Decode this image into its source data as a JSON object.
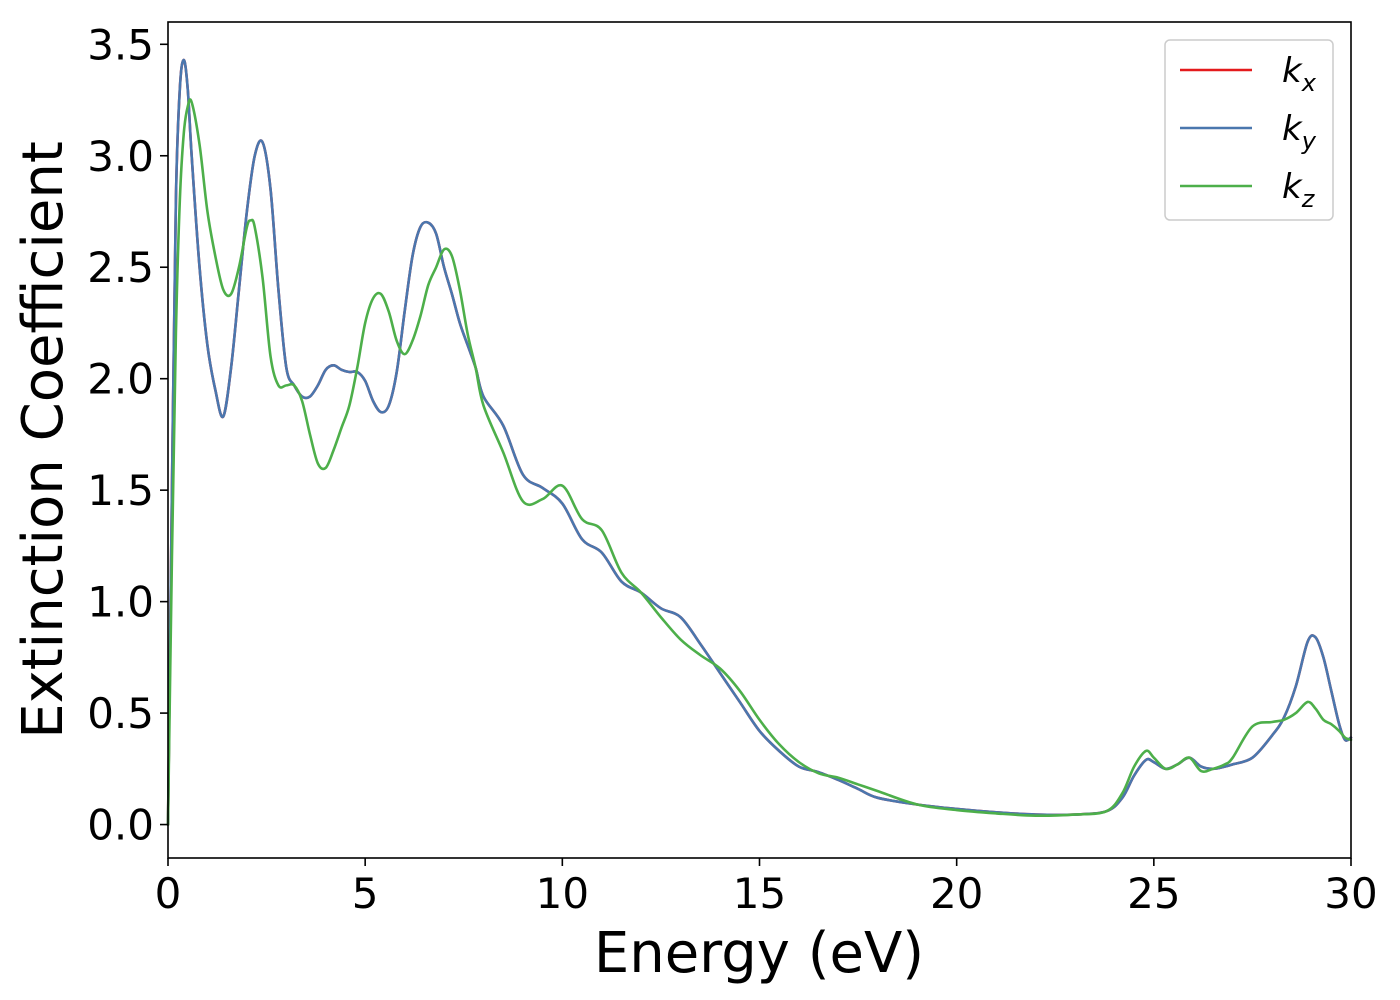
{
  "chart_data": {
    "type": "line",
    "xlabel": "Energy (eV)",
    "ylabel": "Extinction Coefficient",
    "xlim": [
      0,
      30
    ],
    "ylim": [
      -0.15,
      3.6
    ],
    "xticks": [
      0,
      5,
      10,
      15,
      20,
      25,
      30
    ],
    "xtick_labels": [
      "0",
      "5",
      "10",
      "15",
      "20",
      "25",
      "30"
    ],
    "yticks": [
      0.0,
      0.5,
      1.0,
      1.5,
      2.0,
      2.5,
      3.0,
      3.5
    ],
    "ytick_labels": [
      "0.0",
      "0.5",
      "1.0",
      "1.5",
      "2.0",
      "2.5",
      "3.0",
      "3.5"
    ],
    "grid": false,
    "legend_position": "top-right",
    "series": [
      {
        "name": "k",
        "subscript": "x",
        "color": "#e41a1c",
        "x": [
          0,
          0.1,
          0.2,
          0.3,
          0.4,
          0.5,
          0.6,
          0.8,
          1.0,
          1.2,
          1.4,
          1.6,
          1.8,
          2.0,
          2.2,
          2.4,
          2.6,
          2.8,
          3.0,
          3.2,
          3.4,
          3.6,
          3.8,
          4.0,
          4.2,
          4.4,
          4.6,
          4.8,
          5.0,
          5.2,
          5.4,
          5.6,
          5.8,
          6.0,
          6.2,
          6.4,
          6.6,
          6.8,
          7.0,
          7.2,
          7.4,
          7.6,
          7.8,
          8.0,
          8.5,
          9.0,
          9.5,
          10.0,
          10.5,
          11.0,
          11.5,
          12.0,
          12.5,
          13.0,
          13.5,
          14.0,
          14.5,
          15.0,
          15.5,
          16.0,
          16.5,
          17.0,
          17.5,
          18.0,
          19.0,
          20.0,
          21.0,
          22.0,
          23.0,
          23.8,
          24.2,
          24.5,
          24.8,
          25.0,
          25.3,
          25.6,
          25.9,
          26.2,
          26.5,
          26.8,
          27.0,
          27.5,
          28.0,
          28.3,
          28.6,
          28.9,
          29.1,
          29.3,
          29.5,
          29.7,
          29.85,
          30.0
        ],
        "y": [
          0.0,
          1.5,
          2.8,
          3.3,
          3.43,
          3.3,
          3.0,
          2.5,
          2.15,
          1.95,
          1.83,
          2.05,
          2.4,
          2.75,
          3.0,
          3.06,
          2.85,
          2.4,
          2.05,
          1.97,
          1.92,
          1.92,
          1.97,
          2.04,
          2.06,
          2.04,
          2.03,
          2.03,
          1.99,
          1.9,
          1.85,
          1.88,
          2.03,
          2.3,
          2.55,
          2.68,
          2.7,
          2.65,
          2.5,
          2.38,
          2.25,
          2.15,
          2.05,
          1.92,
          1.79,
          1.57,
          1.51,
          1.44,
          1.28,
          1.22,
          1.09,
          1.04,
          0.97,
          0.93,
          0.81,
          0.68,
          0.55,
          0.42,
          0.33,
          0.26,
          0.235,
          0.2,
          0.16,
          0.12,
          0.09,
          0.07,
          0.055,
          0.045,
          0.045,
          0.06,
          0.12,
          0.22,
          0.29,
          0.28,
          0.25,
          0.27,
          0.3,
          0.26,
          0.25,
          0.26,
          0.27,
          0.3,
          0.4,
          0.48,
          0.62,
          0.82,
          0.84,
          0.75,
          0.6,
          0.45,
          0.38,
          0.39
        ]
      },
      {
        "name": "k",
        "subscript": "y",
        "color": "#4a77ae",
        "x": [
          0,
          0.1,
          0.2,
          0.3,
          0.4,
          0.5,
          0.6,
          0.8,
          1.0,
          1.2,
          1.4,
          1.6,
          1.8,
          2.0,
          2.2,
          2.4,
          2.6,
          2.8,
          3.0,
          3.2,
          3.4,
          3.6,
          3.8,
          4.0,
          4.2,
          4.4,
          4.6,
          4.8,
          5.0,
          5.2,
          5.4,
          5.6,
          5.8,
          6.0,
          6.2,
          6.4,
          6.6,
          6.8,
          7.0,
          7.2,
          7.4,
          7.6,
          7.8,
          8.0,
          8.5,
          9.0,
          9.5,
          10.0,
          10.5,
          11.0,
          11.5,
          12.0,
          12.5,
          13.0,
          13.5,
          14.0,
          14.5,
          15.0,
          15.5,
          16.0,
          16.5,
          17.0,
          17.5,
          18.0,
          19.0,
          20.0,
          21.0,
          22.0,
          23.0,
          23.8,
          24.2,
          24.5,
          24.8,
          25.0,
          25.3,
          25.6,
          25.9,
          26.2,
          26.5,
          26.8,
          27.0,
          27.5,
          28.0,
          28.3,
          28.6,
          28.9,
          29.1,
          29.3,
          29.5,
          29.7,
          29.85,
          30.0
        ],
        "y": [
          0.0,
          1.5,
          2.8,
          3.3,
          3.43,
          3.3,
          3.0,
          2.5,
          2.15,
          1.95,
          1.83,
          2.05,
          2.4,
          2.75,
          3.0,
          3.06,
          2.85,
          2.4,
          2.05,
          1.97,
          1.92,
          1.92,
          1.97,
          2.04,
          2.06,
          2.04,
          2.03,
          2.03,
          1.99,
          1.9,
          1.85,
          1.88,
          2.03,
          2.3,
          2.55,
          2.68,
          2.7,
          2.65,
          2.5,
          2.38,
          2.25,
          2.15,
          2.05,
          1.92,
          1.79,
          1.57,
          1.51,
          1.44,
          1.28,
          1.22,
          1.09,
          1.04,
          0.97,
          0.93,
          0.81,
          0.68,
          0.55,
          0.42,
          0.33,
          0.26,
          0.235,
          0.2,
          0.16,
          0.12,
          0.09,
          0.07,
          0.055,
          0.045,
          0.045,
          0.06,
          0.12,
          0.22,
          0.29,
          0.28,
          0.25,
          0.27,
          0.3,
          0.26,
          0.25,
          0.26,
          0.27,
          0.3,
          0.4,
          0.48,
          0.62,
          0.82,
          0.84,
          0.75,
          0.6,
          0.45,
          0.38,
          0.39
        ]
      },
      {
        "name": "k",
        "subscript": "z",
        "color": "#4daf4a",
        "x": [
          0,
          0.1,
          0.2,
          0.3,
          0.4,
          0.5,
          0.6,
          0.8,
          1.0,
          1.2,
          1.4,
          1.6,
          1.8,
          2.0,
          2.1,
          2.2,
          2.4,
          2.6,
          2.8,
          3.0,
          3.2,
          3.4,
          3.6,
          3.8,
          4.0,
          4.2,
          4.4,
          4.6,
          4.8,
          5.0,
          5.2,
          5.4,
          5.6,
          5.8,
          6.0,
          6.2,
          6.4,
          6.6,
          6.8,
          7.0,
          7.2,
          7.4,
          7.6,
          7.8,
          8.0,
          8.5,
          9.0,
          9.5,
          10.0,
          10.5,
          11.0,
          11.5,
          12.0,
          12.5,
          13.0,
          13.5,
          14.0,
          14.5,
          15.0,
          15.5,
          16.0,
          16.5,
          17.0,
          17.5,
          18.0,
          19.0,
          20.0,
          21.0,
          22.0,
          23.0,
          23.8,
          24.2,
          24.5,
          24.8,
          25.0,
          25.3,
          25.6,
          25.9,
          26.2,
          26.5,
          26.8,
          27.0,
          27.5,
          28.0,
          28.3,
          28.6,
          28.9,
          29.1,
          29.3,
          29.5,
          29.7,
          29.85,
          30.0
        ],
        "y": [
          0.0,
          1.2,
          2.2,
          2.8,
          3.1,
          3.22,
          3.24,
          3.05,
          2.75,
          2.55,
          2.4,
          2.38,
          2.5,
          2.68,
          2.71,
          2.68,
          2.45,
          2.1,
          1.97,
          1.97,
          1.97,
          1.9,
          1.75,
          1.62,
          1.6,
          1.68,
          1.78,
          1.88,
          2.05,
          2.25,
          2.36,
          2.38,
          2.3,
          2.17,
          2.11,
          2.17,
          2.28,
          2.42,
          2.5,
          2.58,
          2.55,
          2.4,
          2.2,
          2.05,
          1.88,
          1.67,
          1.45,
          1.46,
          1.52,
          1.37,
          1.32,
          1.13,
          1.04,
          0.93,
          0.83,
          0.76,
          0.7,
          0.6,
          0.47,
          0.36,
          0.28,
          0.23,
          0.21,
          0.18,
          0.15,
          0.09,
          0.065,
          0.05,
          0.04,
          0.045,
          0.06,
          0.14,
          0.26,
          0.33,
          0.3,
          0.25,
          0.27,
          0.3,
          0.24,
          0.25,
          0.27,
          0.3,
          0.44,
          0.46,
          0.47,
          0.5,
          0.55,
          0.52,
          0.47,
          0.45,
          0.42,
          0.39,
          0.38
        ]
      }
    ]
  }
}
